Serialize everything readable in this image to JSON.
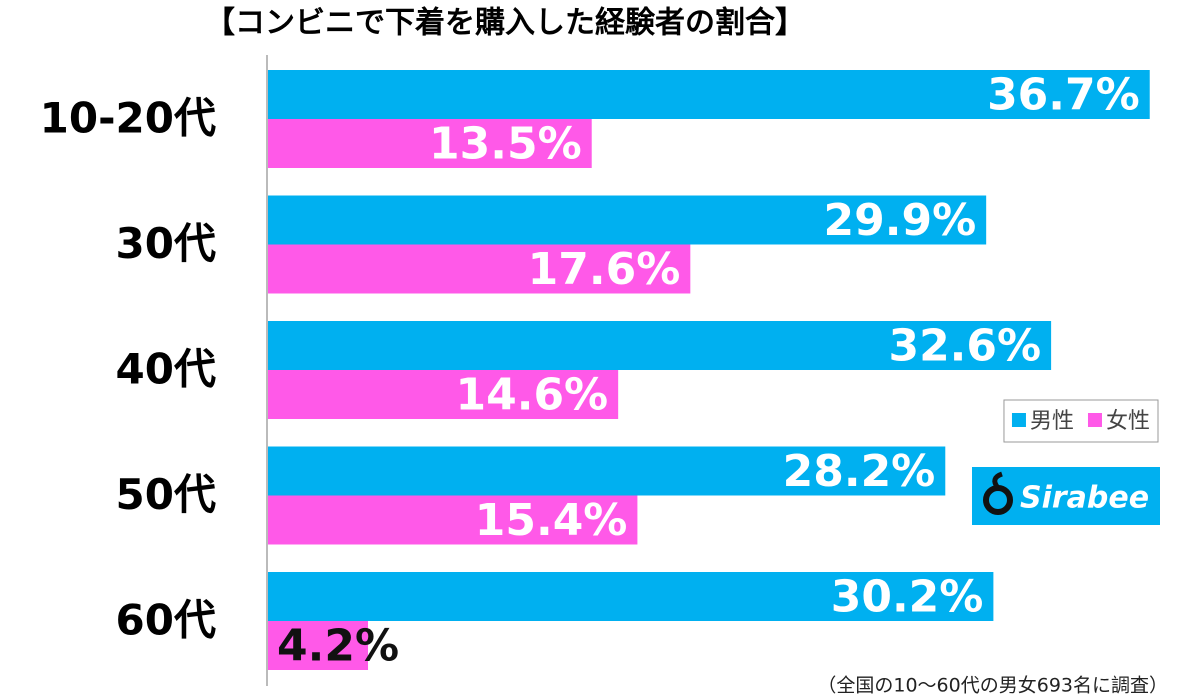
{
  "chart_data": {
    "type": "bar",
    "orientation": "horizontal",
    "title": "【コンビニで下着を購入した経験者の割合】",
    "categories": [
      "10-20代",
      "30代",
      "40代",
      "50代",
      "60代"
    ],
    "series": [
      {
        "name": "男性",
        "color": "#00b0f0",
        "values": [
          36.7,
          29.9,
          32.6,
          28.2,
          30.2
        ],
        "value_labels": [
          "36.7%",
          "29.9%",
          "32.6%",
          "28.2%",
          "30.2%"
        ]
      },
      {
        "name": "女性",
        "color": "#ff59e8",
        "values": [
          13.5,
          17.6,
          14.6,
          15.4,
          4.2
        ],
        "value_labels": [
          "13.5%",
          "17.6%",
          "14.6%",
          "15.4%",
          "4.2%"
        ]
      }
    ],
    "xlim": [
      0,
      38
    ],
    "legend": "right",
    "note": "（全国の10～60代の男女693名に調査）"
  },
  "logo": {
    "text": "Sirabee"
  }
}
